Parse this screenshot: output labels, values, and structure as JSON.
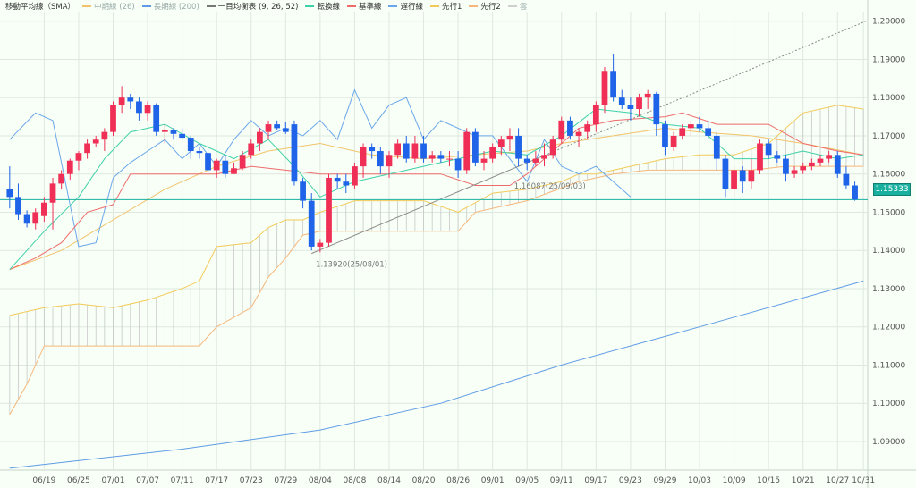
{
  "legend": {
    "title": "移動平均線（SMA）",
    "mid": "中期線 (26)",
    "long": "長期線 (200)",
    "ichimoku": "一目均衡表 (9, 26, 52)",
    "tenkan": "転換線",
    "kijun": "基準線",
    "chikou": "遅行線",
    "senkou1": "先行1",
    "senkou2": "先行2",
    "cloud": "雲"
  },
  "current_price": "1.15333",
  "colors": {
    "up": "#ef2f55",
    "down": "#1f63e8",
    "sma26": "#f2c36a",
    "sma200": "#5f9be6",
    "tenkan": "#3fd0a8",
    "kijun": "#ef6c6c",
    "chikou": "#6aa6ea",
    "senkou1": "#f3ca5a",
    "senkou2": "#f7b67a",
    "cloud_line": "#c8c8c8",
    "grid": "#dfe8df",
    "price_line": "#1ab0a0",
    "trend": "#8a8a8a"
  },
  "chart_data": {
    "type": "candlestick",
    "y_min": 1.0825,
    "y_max": 1.2025,
    "y_ticks": [
      "1.20000",
      "1.19000",
      "1.18000",
      "1.17000",
      "1.16000",
      "1.15000",
      "1.14000",
      "1.13000",
      "1.12000",
      "1.11000",
      "1.10000",
      "1.09000"
    ],
    "y_tick_values": [
      1.2,
      1.19,
      1.18,
      1.17,
      1.16,
      1.15,
      1.14,
      1.13,
      1.12,
      1.11,
      1.1,
      1.09
    ],
    "x_labels": [
      "06/19",
      "06/25",
      "07/01",
      "07/07",
      "07/11",
      "07/17",
      "07/23",
      "07/29",
      "08/04",
      "08/08",
      "08/14",
      "08/20",
      "08/26",
      "09/01",
      "09/05",
      "09/11",
      "09/17",
      "09/23",
      "09/29",
      "10/03",
      "10/09",
      "10/15",
      "10/21",
      "10/27",
      "10/31"
    ],
    "x_label_index": [
      4,
      8,
      12,
      16,
      20,
      24,
      28,
      32,
      36,
      40,
      44,
      48,
      52,
      56,
      60,
      64,
      68,
      72,
      76,
      80,
      84,
      88,
      92,
      96,
      99
    ],
    "candles": [
      [
        1.156,
        1.162,
        1.151,
        1.154
      ],
      [
        1.154,
        1.1575,
        1.148,
        1.1495
      ],
      [
        1.1495,
        1.1505,
        1.146,
        1.147
      ],
      [
        1.147,
        1.151,
        1.1455,
        1.15
      ],
      [
        1.149,
        1.154,
        1.1475,
        1.1525
      ],
      [
        1.1525,
        1.159,
        1.1455,
        1.1575
      ],
      [
        1.1575,
        1.161,
        1.156,
        1.16
      ],
      [
        1.16,
        1.164,
        1.1585,
        1.1635
      ],
      [
        1.1635,
        1.166,
        1.161,
        1.1655
      ],
      [
        1.1655,
        1.169,
        1.164,
        1.168
      ],
      [
        1.168,
        1.17,
        1.167,
        1.169
      ],
      [
        1.169,
        1.172,
        1.166,
        1.171
      ],
      [
        1.171,
        1.179,
        1.17,
        1.178
      ],
      [
        1.178,
        1.183,
        1.176,
        1.18
      ],
      [
        1.18,
        1.181,
        1.177,
        1.179
      ],
      [
        1.179,
        1.18,
        1.174,
        1.176
      ],
      [
        1.176,
        1.179,
        1.174,
        1.178
      ],
      [
        1.178,
        1.1785,
        1.17,
        1.171
      ],
      [
        1.171,
        1.173,
        1.168,
        1.1715
      ],
      [
        1.1715,
        1.172,
        1.169,
        1.1705
      ],
      [
        1.1705,
        1.172,
        1.169,
        1.1695
      ],
      [
        1.1695,
        1.17,
        1.164,
        1.166
      ],
      [
        1.166,
        1.167,
        1.164,
        1.1655
      ],
      [
        1.1655,
        1.167,
        1.16,
        1.161
      ],
      [
        1.161,
        1.164,
        1.159,
        1.1635
      ],
      [
        1.1635,
        1.165,
        1.159,
        1.16
      ],
      [
        1.16,
        1.163,
        1.16,
        1.1615
      ],
      [
        1.1615,
        1.166,
        1.161,
        1.165
      ],
      [
        1.165,
        1.169,
        1.164,
        1.168
      ],
      [
        1.168,
        1.172,
        1.166,
        1.171
      ],
      [
        1.171,
        1.174,
        1.169,
        1.173
      ],
      [
        1.173,
        1.174,
        1.1715,
        1.172
      ],
      [
        1.172,
        1.1735,
        1.1705,
        1.171
      ],
      [
        1.173,
        1.174,
        1.157,
        1.158
      ],
      [
        1.158,
        1.159,
        1.151,
        1.153
      ],
      [
        1.153,
        1.155,
        1.14,
        1.141
      ],
      [
        1.141,
        1.143,
        1.1395,
        1.142
      ],
      [
        1.142,
        1.16,
        1.141,
        1.159
      ],
      [
        1.159,
        1.16,
        1.156,
        1.158
      ],
      [
        1.158,
        1.16,
        1.155,
        1.157
      ],
      [
        1.157,
        1.163,
        1.156,
        1.162
      ],
      [
        1.162,
        1.168,
        1.159,
        1.167
      ],
      [
        1.167,
        1.168,
        1.164,
        1.166
      ],
      [
        1.166,
        1.167,
        1.16,
        1.162
      ],
      [
        1.162,
        1.166,
        1.159,
        1.165
      ],
      [
        1.165,
        1.169,
        1.164,
        1.168
      ],
      [
        1.168,
        1.17,
        1.163,
        1.164
      ],
      [
        1.164,
        1.17,
        1.163,
        1.168
      ],
      [
        1.168,
        1.17,
        1.163,
        1.164
      ],
      [
        1.164,
        1.166,
        1.163,
        1.165
      ],
      [
        1.165,
        1.166,
        1.163,
        1.164
      ],
      [
        1.164,
        1.166,
        1.162,
        1.164
      ],
      [
        1.164,
        1.166,
        1.159,
        1.161
      ],
      [
        1.161,
        1.172,
        1.16,
        1.171
      ],
      [
        1.171,
        1.172,
        1.162,
        1.163
      ],
      [
        1.163,
        1.166,
        1.161,
        1.164
      ],
      [
        1.164,
        1.168,
        1.163,
        1.167
      ],
      [
        1.167,
        1.17,
        1.165,
        1.169
      ],
      [
        1.169,
        1.172,
        1.166,
        1.17
      ],
      [
        1.17,
        1.172,
        1.162,
        1.164
      ],
      [
        1.164,
        1.165,
        1.161,
        1.163
      ],
      [
        1.163,
        1.166,
        1.162,
        1.164
      ],
      [
        1.164,
        1.168,
        1.162,
        1.165
      ],
      [
        1.165,
        1.17,
        1.164,
        1.169
      ],
      [
        1.169,
        1.175,
        1.168,
        1.174
      ],
      [
        1.174,
        1.175,
        1.169,
        1.17
      ],
      [
        1.17,
        1.172,
        1.167,
        1.171
      ],
      [
        1.171,
        1.174,
        1.169,
        1.173
      ],
      [
        1.173,
        1.179,
        1.171,
        1.178
      ],
      [
        1.178,
        1.188,
        1.176,
        1.187
      ],
      [
        1.187,
        1.1915,
        1.179,
        1.18
      ],
      [
        1.18,
        1.182,
        1.177,
        1.178
      ],
      [
        1.178,
        1.18,
        1.174,
        1.177
      ],
      [
        1.177,
        1.181,
        1.175,
        1.18
      ],
      [
        1.18,
        1.182,
        1.177,
        1.181
      ],
      [
        1.181,
        1.1815,
        1.17,
        1.173
      ],
      [
        1.173,
        1.174,
        1.165,
        1.167
      ],
      [
        1.167,
        1.171,
        1.166,
        1.17
      ],
      [
        1.17,
        1.173,
        1.169,
        1.172
      ],
      [
        1.172,
        1.174,
        1.17,
        1.173
      ],
      [
        1.173,
        1.175,
        1.171,
        1.172
      ],
      [
        1.172,
        1.174,
        1.169,
        1.17
      ],
      [
        1.17,
        1.171,
        1.161,
        1.164
      ],
      [
        1.164,
        1.165,
        1.154,
        1.156
      ],
      [
        1.156,
        1.162,
        1.154,
        1.161
      ],
      [
        1.161,
        1.162,
        1.155,
        1.158
      ],
      [
        1.158,
        1.164,
        1.156,
        1.161
      ],
      [
        1.161,
        1.169,
        1.16,
        1.168
      ],
      [
        1.168,
        1.169,
        1.164,
        1.165
      ],
      [
        1.165,
        1.166,
        1.163,
        1.164
      ],
      [
        1.164,
        1.165,
        1.158,
        1.16
      ],
      [
        1.16,
        1.162,
        1.159,
        1.161
      ],
      [
        1.161,
        1.163,
        1.16,
        1.162
      ],
      [
        1.162,
        1.164,
        1.161,
        1.163
      ],
      [
        1.163,
        1.165,
        1.162,
        1.164
      ],
      [
        1.164,
        1.166,
        1.163,
        1.165
      ],
      [
        1.165,
        1.166,
        1.159,
        1.16
      ],
      [
        1.16,
        1.162,
        1.156,
        1.157
      ],
      [
        1.157,
        1.158,
        1.153,
        1.1533
      ]
    ],
    "sma26": [
      [
        0,
        1.135
      ],
      [
        6,
        1.14
      ],
      [
        12,
        1.148
      ],
      [
        18,
        1.156
      ],
      [
        24,
        1.162
      ],
      [
        30,
        1.166
      ],
      [
        36,
        1.168
      ],
      [
        42,
        1.165
      ],
      [
        48,
        1.164
      ],
      [
        54,
        1.165
      ],
      [
        60,
        1.166
      ],
      [
        64,
        1.168
      ],
      [
        70,
        1.17
      ],
      [
        76,
        1.172
      ],
      [
        80,
        1.171
      ],
      [
        86,
        1.17
      ],
      [
        92,
        1.168
      ],
      [
        99,
        1.165
      ]
    ],
    "sma200": [
      [
        0,
        1.083
      ],
      [
        20,
        1.088
      ],
      [
        36,
        1.093
      ],
      [
        50,
        1.1
      ],
      [
        64,
        1.11
      ],
      [
        80,
        1.12
      ],
      [
        99,
        1.132
      ]
    ],
    "tenkan": [
      [
        0,
        1.135
      ],
      [
        4,
        1.145
      ],
      [
        8,
        1.154
      ],
      [
        11,
        1.164
      ],
      [
        14,
        1.171
      ],
      [
        18,
        1.173
      ],
      [
        22,
        1.168
      ],
      [
        26,
        1.164
      ],
      [
        30,
        1.169
      ],
      [
        33,
        1.162
      ],
      [
        36,
        1.154
      ],
      [
        40,
        1.158
      ],
      [
        44,
        1.16
      ],
      [
        48,
        1.162
      ],
      [
        52,
        1.164
      ],
      [
        56,
        1.166
      ],
      [
        60,
        1.165
      ],
      [
        64,
        1.17
      ],
      [
        68,
        1.177
      ],
      [
        72,
        1.176
      ],
      [
        76,
        1.173
      ],
      [
        80,
        1.172
      ],
      [
        84,
        1.164
      ],
      [
        88,
        1.164
      ],
      [
        92,
        1.166
      ],
      [
        96,
        1.164
      ],
      [
        99,
        1.165
      ]
    ],
    "kijun": [
      [
        0,
        1.135
      ],
      [
        3,
        1.138
      ],
      [
        6,
        1.142
      ],
      [
        9,
        1.15
      ],
      [
        12,
        1.152
      ],
      [
        14,
        1.16
      ],
      [
        24,
        1.16
      ],
      [
        28,
        1.162
      ],
      [
        32,
        1.161
      ],
      [
        36,
        1.16
      ],
      [
        40,
        1.16
      ],
      [
        50,
        1.16
      ],
      [
        54,
        1.157
      ],
      [
        58,
        1.157
      ],
      [
        60,
        1.16
      ],
      [
        64,
        1.168
      ],
      [
        66,
        1.172
      ],
      [
        70,
        1.174
      ],
      [
        76,
        1.175
      ],
      [
        78,
        1.176
      ],
      [
        82,
        1.173
      ],
      [
        88,
        1.173
      ],
      [
        92,
        1.168
      ],
      [
        96,
        1.166
      ],
      [
        99,
        1.165
      ]
    ],
    "chikou": [
      [
        0,
        1.169
      ],
      [
        3,
        1.176
      ],
      [
        5,
        1.174
      ],
      [
        8,
        1.141
      ],
      [
        10,
        1.142
      ],
      [
        12,
        1.159
      ],
      [
        14,
        1.163
      ],
      [
        16,
        1.166
      ],
      [
        18,
        1.169
      ],
      [
        20,
        1.164
      ],
      [
        22,
        1.168
      ],
      [
        24,
        1.162
      ],
      [
        26,
        1.169
      ],
      [
        28,
        1.174
      ],
      [
        30,
        1.17
      ],
      [
        32,
        1.172
      ],
      [
        34,
        1.17
      ],
      [
        36,
        1.174
      ],
      [
        38,
        1.169
      ],
      [
        40,
        1.182
      ],
      [
        42,
        1.172
      ],
      [
        44,
        1.178
      ],
      [
        46,
        1.18
      ],
      [
        48,
        1.169
      ],
      [
        50,
        1.174
      ],
      [
        52,
        1.172
      ],
      [
        54,
        1.17
      ],
      [
        56,
        1.17
      ],
      [
        58,
        1.164
      ],
      [
        60,
        1.158
      ],
      [
        62,
        1.169
      ],
      [
        64,
        1.162
      ],
      [
        66,
        1.16
      ],
      [
        68,
        1.162
      ],
      [
        70,
        1.158
      ],
      [
        72,
        1.154
      ]
    ],
    "senkou1": [
      [
        0,
        1.123
      ],
      [
        4,
        1.125
      ],
      [
        8,
        1.126
      ],
      [
        12,
        1.125
      ],
      [
        16,
        1.127
      ],
      [
        20,
        1.13
      ],
      [
        22,
        1.132
      ],
      [
        24,
        1.141
      ],
      [
        28,
        1.142
      ],
      [
        30,
        1.146
      ],
      [
        32,
        1.148
      ],
      [
        34,
        1.148
      ],
      [
        36,
        1.15
      ],
      [
        40,
        1.153
      ],
      [
        48,
        1.153
      ],
      [
        52,
        1.15
      ],
      [
        56,
        1.155
      ],
      [
        60,
        1.156
      ],
      [
        64,
        1.158
      ],
      [
        66,
        1.16
      ],
      [
        68,
        1.16
      ],
      [
        72,
        1.162
      ],
      [
        76,
        1.164
      ],
      [
        80,
        1.165
      ],
      [
        84,
        1.165
      ],
      [
        88,
        1.168
      ],
      [
        92,
        1.176
      ],
      [
        96,
        1.178
      ],
      [
        99,
        1.177
      ]
    ],
    "senkou2": [
      [
        0,
        1.097
      ],
      [
        2,
        1.105
      ],
      [
        4,
        1.115
      ],
      [
        22,
        1.115
      ],
      [
        24,
        1.12
      ],
      [
        28,
        1.125
      ],
      [
        30,
        1.133
      ],
      [
        32,
        1.138
      ],
      [
        34,
        1.144
      ],
      [
        36,
        1.145
      ],
      [
        52,
        1.145
      ],
      [
        54,
        1.15
      ],
      [
        60,
        1.153
      ],
      [
        66,
        1.158
      ],
      [
        70,
        1.16
      ],
      [
        74,
        1.161
      ],
      [
        86,
        1.161
      ],
      [
        90,
        1.162
      ],
      [
        99,
        1.162
      ]
    ],
    "trend_line": [
      [
        35,
        1.1392
      ],
      [
        99,
        1.2
      ]
    ],
    "annotations": [
      {
        "label": "1.13920(25/08/01)",
        "idx": 35.5,
        "price": 1.1385
      },
      {
        "label": "1.16087(25/09/03)",
        "idx": 58.5,
        "price": 1.159
      }
    ]
  }
}
